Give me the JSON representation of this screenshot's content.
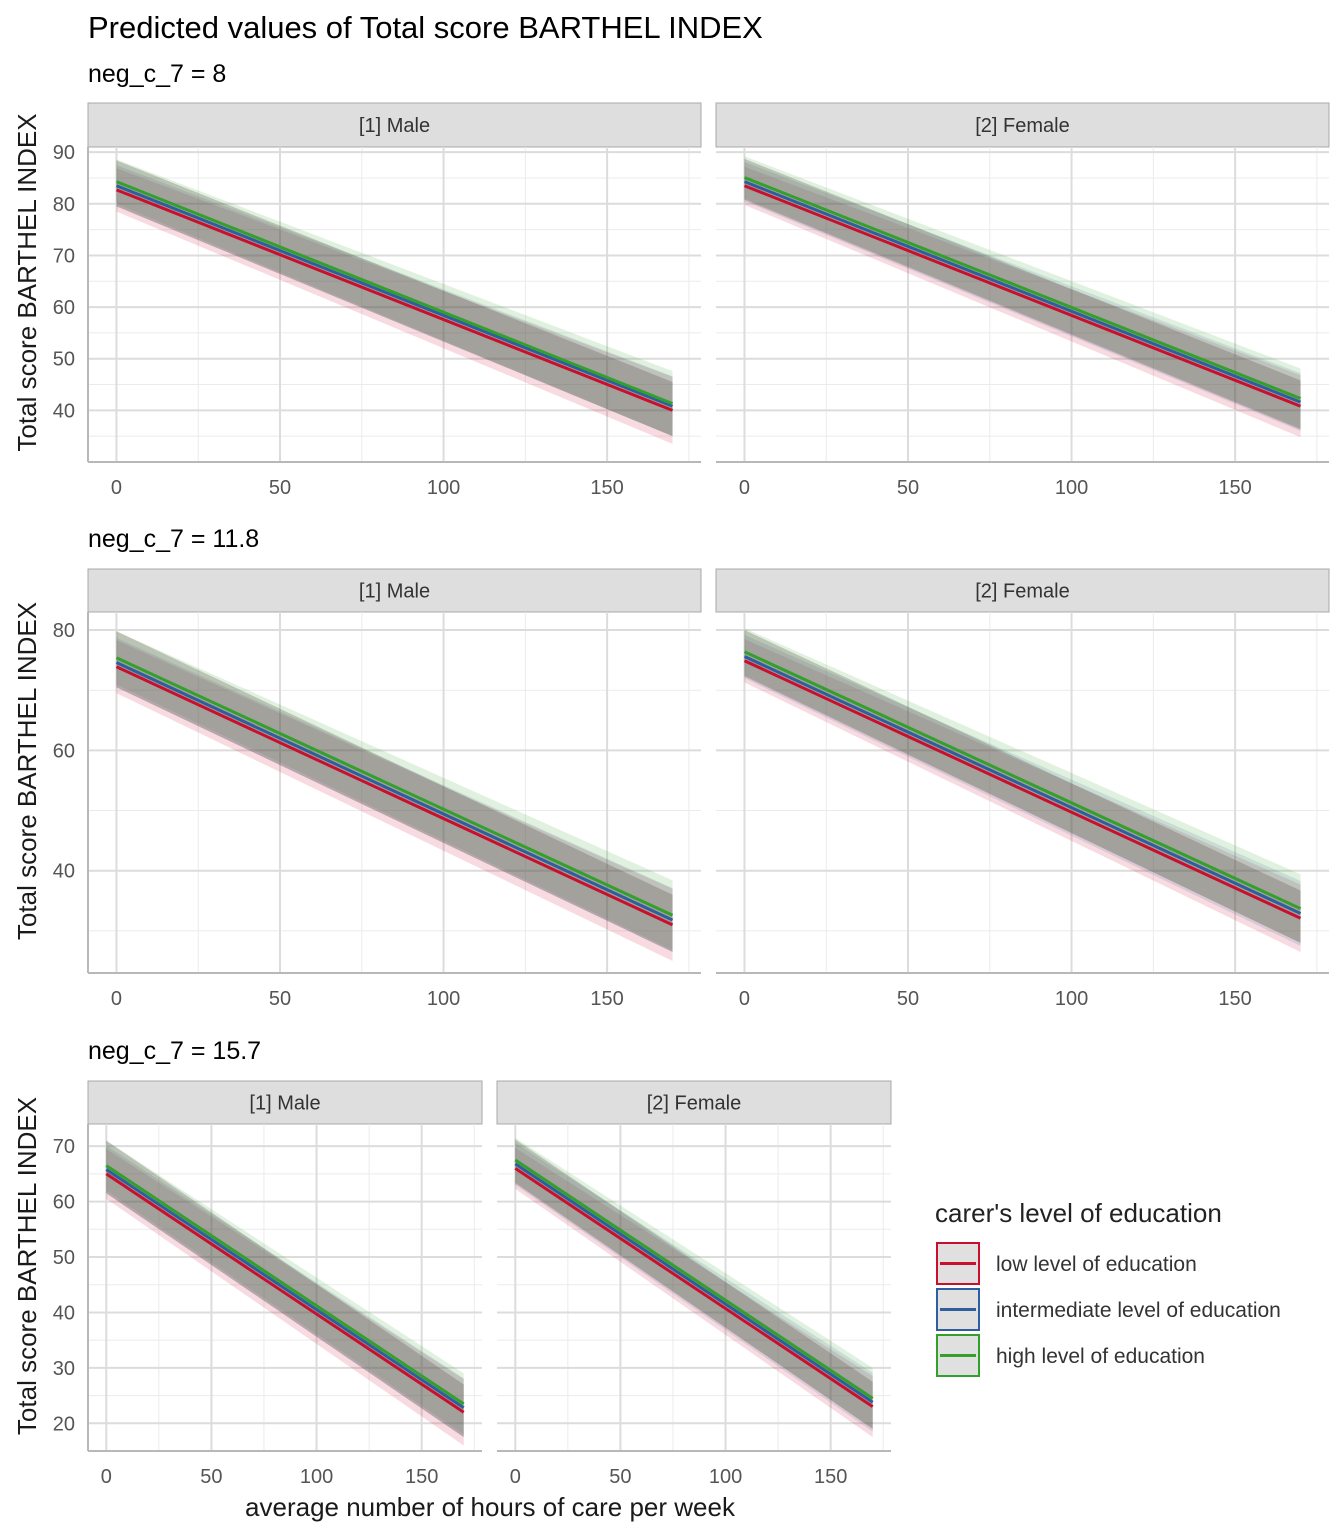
{
  "title": "Predicted values of Total score BARTHEL INDEX",
  "x_axis_label": "average number of hours of care per week",
  "y_axis_label": "Total score BARTHEL INDEX",
  "legend": {
    "title": "carer's level of education",
    "items": [
      {
        "label": "low level of education",
        "color": "#C8102E"
      },
      {
        "label": "intermediate level of education",
        "color": "#2E5E9E"
      },
      {
        "label": "high level of education",
        "color": "#33A02C"
      }
    ]
  },
  "chart_data": [
    {
      "type": "line",
      "subtitle": "neg_c_7 = 8",
      "xlabel": "average number of hours of care per week",
      "ylabel": "Total score BARTHEL INDEX",
      "xlim": [
        0,
        170
      ],
      "ylim": [
        30,
        91
      ],
      "x_ticks": [
        0,
        50,
        100,
        150
      ],
      "y_ticks": [
        40,
        50,
        60,
        70,
        80,
        90
      ],
      "panels": [
        {
          "facet": "[1] Male",
          "series": [
            {
              "name": "low level of education",
              "x": [
                0,
                170
              ],
              "y": [
                82.7,
                40.0
              ],
              "ci_low": [
                78.5,
                33.5
              ],
              "ci_high": [
                86.9,
                46.5
              ]
            },
            {
              "name": "intermediate level of education",
              "x": [
                0,
                170
              ],
              "y": [
                83.5,
                40.8
              ],
              "ci_low": [
                79.5,
                35.0
              ],
              "ci_high": [
                87.5,
                46.6
              ]
            },
            {
              "name": "high level of education",
              "x": [
                0,
                170
              ],
              "y": [
                84.3,
                41.3
              ],
              "ci_low": [
                80.0,
                35.0
              ],
              "ci_high": [
                88.6,
                47.6
              ]
            }
          ]
        },
        {
          "facet": "[2] Female",
          "series": [
            {
              "name": "low level of education",
              "x": [
                0,
                170
              ],
              "y": [
                83.5,
                40.8
              ],
              "ci_low": [
                79.8,
                34.8
              ],
              "ci_high": [
                87.2,
                46.8
              ]
            },
            {
              "name": "intermediate level of education",
              "x": [
                0,
                170
              ],
              "y": [
                84.3,
                41.6
              ],
              "ci_low": [
                80.5,
                36.0
              ],
              "ci_high": [
                88.1,
                47.2
              ]
            },
            {
              "name": "high level of education",
              "x": [
                0,
                170
              ],
              "y": [
                85.1,
                42.3
              ],
              "ci_low": [
                81.0,
                36.5
              ],
              "ci_high": [
                89.2,
                48.1
              ]
            }
          ]
        }
      ]
    },
    {
      "type": "line",
      "subtitle": "neg_c_7 = 11.8",
      "xlabel": "average number of hours of care per week",
      "ylabel": "Total score BARTHEL INDEX",
      "xlim": [
        0,
        170
      ],
      "ylim": [
        23,
        83
      ],
      "x_ticks": [
        0,
        50,
        100,
        150
      ],
      "y_ticks": [
        40,
        60,
        80
      ],
      "panels": [
        {
          "facet": "[1] Male",
          "series": [
            {
              "name": "low level of education",
              "x": [
                0,
                170
              ],
              "y": [
                73.9,
                31.0
              ],
              "ci_low": [
                69.5,
                25.0
              ],
              "ci_high": [
                78.3,
                37.0
              ]
            },
            {
              "name": "intermediate level of education",
              "x": [
                0,
                170
              ],
              "y": [
                74.6,
                31.8
              ],
              "ci_low": [
                70.5,
                26.5
              ],
              "ci_high": [
                78.7,
                37.1
              ]
            },
            {
              "name": "high level of education",
              "x": [
                0,
                170
              ],
              "y": [
                75.4,
                32.6
              ],
              "ci_low": [
                71.0,
                26.8
              ],
              "ci_high": [
                79.8,
                38.4
              ]
            }
          ]
        },
        {
          "facet": "[2] Female",
          "series": [
            {
              "name": "low level of education",
              "x": [
                0,
                170
              ],
              "y": [
                74.9,
                32.1
              ],
              "ci_low": [
                71.3,
                26.5
              ],
              "ci_high": [
                78.5,
                37.7
              ]
            },
            {
              "name": "intermediate level of education",
              "x": [
                0,
                170
              ],
              "y": [
                75.6,
                32.9
              ],
              "ci_low": [
                72.0,
                27.5
              ],
              "ci_high": [
                79.2,
                38.3
              ]
            },
            {
              "name": "high level of education",
              "x": [
                0,
                170
              ],
              "y": [
                76.4,
                33.7
              ],
              "ci_low": [
                72.5,
                28.0
              ],
              "ci_high": [
                80.3,
                39.4
              ]
            }
          ]
        }
      ]
    },
    {
      "type": "line",
      "subtitle": "neg_c_7 = 15.7",
      "xlabel": "average number of hours of care per week",
      "ylabel": "Total score BARTHEL INDEX",
      "xlim": [
        0,
        170
      ],
      "ylim": [
        15,
        74
      ],
      "x_ticks": [
        0,
        50,
        100,
        150
      ],
      "y_ticks": [
        20,
        30,
        40,
        50,
        60,
        70
      ],
      "panels": [
        {
          "facet": "[1] Male",
          "series": [
            {
              "name": "low level of education",
              "x": [
                0,
                170
              ],
              "y": [
                65.0,
                22.0
              ],
              "ci_low": [
                60.5,
                16.0
              ],
              "ci_high": [
                69.5,
                28.0
              ]
            },
            {
              "name": "intermediate level of education",
              "x": [
                0,
                170
              ],
              "y": [
                65.8,
                22.8
              ],
              "ci_low": [
                61.5,
                17.5
              ],
              "ci_high": [
                70.1,
                28.1
              ]
            },
            {
              "name": "high level of education",
              "x": [
                0,
                170
              ],
              "y": [
                66.5,
                23.5
              ],
              "ci_low": [
                62.0,
                18.0
              ],
              "ci_high": [
                71.0,
                29.0
              ]
            }
          ]
        },
        {
          "facet": "[2] Female",
          "series": [
            {
              "name": "low level of education",
              "x": [
                0,
                170
              ],
              "y": [
                66.0,
                23.0
              ],
              "ci_low": [
                62.3,
                17.5
              ],
              "ci_high": [
                69.7,
                28.5
              ]
            },
            {
              "name": "intermediate level of education",
              "x": [
                0,
                170
              ],
              "y": [
                66.8,
                23.8
              ],
              "ci_low": [
                63.0,
                18.5
              ],
              "ci_high": [
                70.6,
                29.1
              ]
            },
            {
              "name": "high level of education",
              "x": [
                0,
                170
              ],
              "y": [
                67.5,
                24.5
              ],
              "ci_low": [
                63.5,
                19.0
              ],
              "ci_high": [
                71.5,
                30.0
              ]
            }
          ]
        }
      ]
    }
  ]
}
